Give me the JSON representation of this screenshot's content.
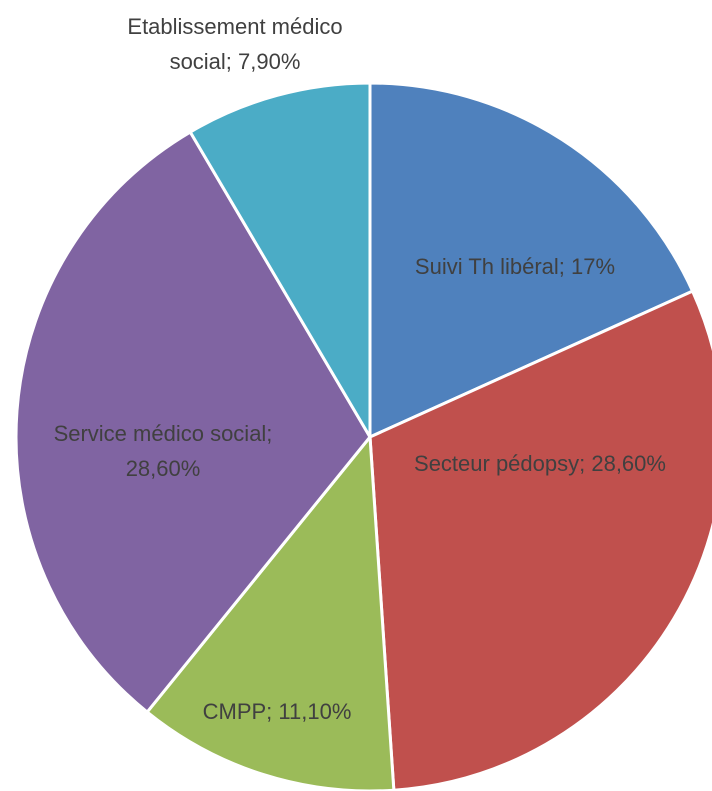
{
  "chart_data": {
    "type": "pie",
    "values": [
      17,
      28.6,
      11.1,
      28.6,
      7.9
    ],
    "value_labels": [
      "Suivi Th libéral; 17%",
      "Secteur pédopsy; 28,60%",
      "CMPP; 11,10%",
      "Service médico social; 28,60%",
      "Etablissement médico social; 7,90%"
    ],
    "colors": [
      "#4f81bd",
      "#c0504d",
      "#9bbb59",
      "#8064a2",
      "#4bacc6"
    ]
  }
}
